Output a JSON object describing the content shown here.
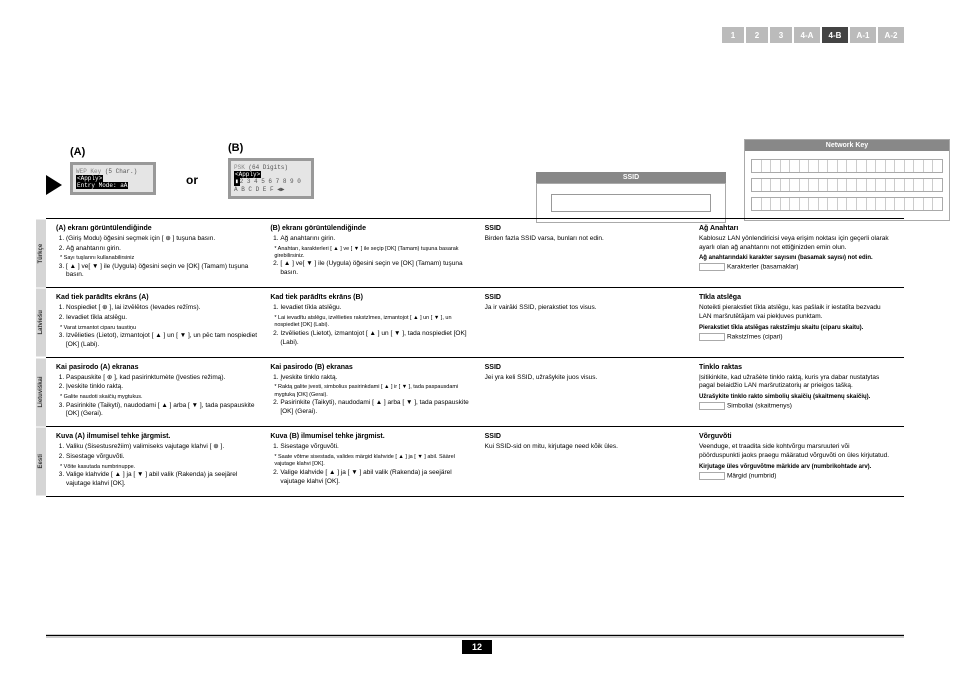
{
  "tabs": [
    "1",
    "2",
    "3",
    "4-A",
    "4-B",
    "A-1",
    "A-2"
  ],
  "active_tab": 4,
  "screen_a": {
    "label": "(A)",
    "l1a": "WEP Key ",
    "l1b": "(5 Char.)",
    "l2_pre": "       ",
    "l2_inv": "<Apply>",
    "l3_pre": "       ",
    "l3_inv": "Entry Mode: aA"
  },
  "or": "or",
  "screen_b": {
    "label": "(B)",
    "l1a": "PSK ",
    "l1b": "(64 Digits)",
    "l2_pre": "       ",
    "l2_inv": "<Apply>",
    "l3_inv": "▮",
    "l3_post": "2 3 4 5 6 7 8 9 0",
    "l4": " A B C D E F ◀▶"
  },
  "ssid_label": "SSID",
  "netkey_label": "Network Key",
  "languages": [
    {
      "name": "Türkçe",
      "colA_title": "(A) ekranı görüntülendiğinde",
      "colA_body_li1": "<Entry Mode> (Giriş Modu) öğesini seçmek için [ ⊕ ] tuşuna basın.",
      "colA_body_li2": "Ağ anahtarını girin.",
      "colA_foot": "* Sayı tuşlarını kullanabilirsiniz",
      "colA_body_li3": "[ ▲ ] ve[ ▼ ] ile <Apply> (Uygula) öğesini seçin ve [OK] (Tamam) tuşuna basın.",
      "colB_title": "(B) ekranı görüntülendiğinde",
      "colB_li1": "Ağ anahtarını girin.",
      "colB_foot": "* Anahtarı, karakterleri [ ▲ ] ve [ ▼ ] ile seçip [OK] (Tamam) tuşuna basarak girebilirsiniz.",
      "colB_li2": "[ ▲ ] ve[ ▼ ] ile <Apply> (Uygula) öğesini seçin ve [OK] (Tamam) tuşuna basın.",
      "colC_title": "SSID",
      "colC_body": "Birden fazla SSID varsa, bunları not edin.",
      "colD_title": "Ağ Anahtarı",
      "colD_body": "Kablosuz LAN yönlendiricisi veya erişim noktası için geçerli olarak ayarlı olan ağ anahtarını not ettiğinizden emin olun.",
      "colD_note": "Ağ anahtarındaki karakter sayısını (basamak sayısı) not edin.",
      "colD_write": "Karakterler (basamaklar)"
    },
    {
      "name": "Latviešu",
      "colA_title": "Kad tiek parādīts ekrāns (A)",
      "colA_body_li1": "Nospiediet [ ⊕ ], lai izvēlētos <Entry Mode> (Ievades režīms).",
      "colA_body_li2": "Ievadiet tīkla atslēgu.",
      "colA_foot": "* Varat izmantot ciparu taustiņu",
      "colA_body_li3": "Izvēlieties <Apply> (Lietot), izmantojot [ ▲ ] un [ ▼ ], un pēc tam nospiediet [OK] (Labi).",
      "colB_title": "Kad tiek parādīts ekrāns (B)",
      "colB_li1": "Ievadiet tīkla atslēgu.",
      "colB_foot": "* Lai ievadītu atslēgu, izvēlieties rakstzīmes, izmantojot [ ▲ ] un [ ▼ ], un nospiediet [OK] (Labi).",
      "colB_li2": "Izvēlieties <Apply> (Lietot), izmantojot [ ▲ ] un [ ▼ ], tada nospiediet [OK] (Labi).",
      "colC_title": "SSID",
      "colC_body": "Ja ir vairāki SSID, pierakstiet tos visus.",
      "colD_title": "Tīkla atslēga",
      "colD_body": "Noteikti pierakstiet tīkla atslēgu, kas pašlaik ir iestatīta bezvadu LAN maršrutētājam vai piekļuves punktam.",
      "colD_note": "Pierakstiet tīkla atslēgas rakstzīmju skaitu (ciparu skaitu).",
      "colD_write": "Rakstzīmes (cipari)"
    },
    {
      "name": "Lietuviškai",
      "colA_title": "Kai pasirodo (A) ekranas",
      "colA_body_li1": "Paspauskite [ ⊕ ], kad pasirinktumėte <Entry Mode> (Įvesties režimą).",
      "colA_body_li2": "Įveskite tinklo raktą.",
      "colA_foot": "* Galite naudoti skaičių mygtukus.",
      "colA_body_li3": "Pasirinkite <Apply> (Taikyti), naudodami [ ▲ ] arba [ ▼ ], tada paspauskite [OK] (Gerai).",
      "colB_title": "Kai pasirodo (B) ekranas",
      "colB_li1": "Įveskite tinklo raktą.",
      "colB_foot": "* Raktą galite įvesti, simbolius pasirinkdami [ ▲ ] ir [ ▼ ], tada paspausdami mygtuką [OK] (Gerai).",
      "colB_li2": "Pasirinkite <Apply> (Taikyti), naudodami [ ▲ ] arba [ ▼ ], tada paspauskite [OK] (Gerai).",
      "colC_title": "SSID",
      "colC_body": "Jei yra keli SSID, užrašykite juos visus.",
      "colD_title": "Tinklo raktas",
      "colD_body": "Įsitikinkite, kad užrašėte tinklo raktą, kuris yra dabar nustatytas pagal belaidžio LAN maršrutizatorių ar prieigos tašką.",
      "colD_note": "Užrašykite tinklo rakto simbolių skaičių (skaitmenų skaičių).",
      "colD_write": "Simboliai (skaitmenys)"
    },
    {
      "name": "Eesti",
      "colA_title": "Kuva (A) ilmumisel tehke järgmist.",
      "colA_body_li1": "Valiku <Entry Mode> (Sisestusrežiim) valimiseks vajutage klahvi [ ⊕ ].",
      "colA_body_li2": "Sisestage võrguvõti.",
      "colA_foot": "* Võite kasutada numbrinuppe.",
      "colA_body_li3": "Valige klahvide [ ▲ ] ja [ ▼ ] abil valik <Apply> (Rakenda) ja seejärel vajutage klahvi [OK].",
      "colB_title": "Kuva (B) ilmumisel tehke järgmist.",
      "colB_li1": "Sisestage võrguvõti.",
      "colB_foot": "* Saate võtme sisestada, valides märgid klahvide [ ▲ ] ja [ ▼ ] abil. Säärel vajutage klahvi [OK].",
      "colB_li2": "Valige klahvide [ ▲ ] ja [ ▼ ] abil valik <Apply> (Rakenda) ja seejärel vajutage klahvi [OK].",
      "colC_title": "SSID",
      "colC_body": "Kui SSID-sid on mitu, kirjutage need kõik üles.",
      "colD_title": "Võrguvõti",
      "colD_body": "Veenduge, et traadita side kohtvõrgu marsruuteri või pöörduspunkti jaoks praegu määratud võrguvõti on üles kirjutatud.",
      "colD_note": "Kirjutage üles võrguvõtme märkide arv (numbrikohtade arv).",
      "colD_write": "Märgid (numbrid)"
    }
  ],
  "page_num": "12"
}
